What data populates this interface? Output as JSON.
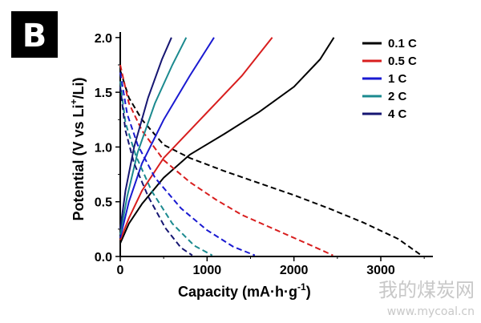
{
  "panel_label": "B",
  "watermark": {
    "title": "我的煤炭网",
    "url": "www.mycoal.cn"
  },
  "chart_data": {
    "type": "line",
    "xlabel": "Capacity (mA·h·g",
    "xlabel_sup": "-1",
    "xlabel_tail": ")",
    "ylabel_parts": [
      "Potential (V vs Li",
      "+",
      "/Li)"
    ],
    "xlim": [
      0,
      3600
    ],
    "ylim": [
      0,
      2.05
    ],
    "xticks": [
      0,
      1000,
      2000,
      3000
    ],
    "xtick_labels": [
      "0",
      "1000",
      "2000",
      "3000"
    ],
    "yticks": [
      0.0,
      0.5,
      1.0,
      1.5,
      2.0
    ],
    "ytick_labels": [
      "0.0",
      "0.5",
      "1.0",
      "1.5",
      "2.0"
    ],
    "legend_position": "top-right",
    "series": [
      {
        "name": "0.1 C",
        "color": "#000000",
        "discharge": [
          [
            0,
            1.7
          ],
          [
            100,
            1.45
          ],
          [
            250,
            1.25
          ],
          [
            500,
            1.02
          ],
          [
            800,
            0.9
          ],
          [
            1200,
            0.78
          ],
          [
            1600,
            0.67
          ],
          [
            2000,
            0.56
          ],
          [
            2400,
            0.44
          ],
          [
            2800,
            0.31
          ],
          [
            3200,
            0.16
          ],
          [
            3450,
            0.02
          ]
        ],
        "charge": [
          [
            0,
            0.12
          ],
          [
            100,
            0.3
          ],
          [
            250,
            0.48
          ],
          [
            500,
            0.72
          ],
          [
            800,
            0.93
          ],
          [
            1200,
            1.12
          ],
          [
            1600,
            1.32
          ],
          [
            2000,
            1.55
          ],
          [
            2300,
            1.8
          ],
          [
            2460,
            2.0
          ]
        ]
      },
      {
        "name": "0.5 C",
        "color": "#d81e1e",
        "discharge": [
          [
            0,
            1.75
          ],
          [
            100,
            1.4
          ],
          [
            250,
            1.15
          ],
          [
            500,
            0.88
          ],
          [
            800,
            0.68
          ],
          [
            1100,
            0.52
          ],
          [
            1400,
            0.38
          ],
          [
            1800,
            0.24
          ],
          [
            2200,
            0.1
          ],
          [
            2450,
            0.01
          ]
        ],
        "charge": [
          [
            0,
            0.15
          ],
          [
            100,
            0.35
          ],
          [
            250,
            0.6
          ],
          [
            500,
            0.9
          ],
          [
            800,
            1.15
          ],
          [
            1100,
            1.4
          ],
          [
            1400,
            1.65
          ],
          [
            1750,
            2.0
          ]
        ]
      },
      {
        "name": "1 C",
        "color": "#1a1ad1",
        "discharge": [
          [
            0,
            1.68
          ],
          [
            80,
            1.3
          ],
          [
            200,
            1.02
          ],
          [
            400,
            0.72
          ],
          [
            700,
            0.44
          ],
          [
            1000,
            0.24
          ],
          [
            1300,
            0.09
          ],
          [
            1550,
            0.01
          ]
        ],
        "charge": [
          [
            0,
            0.17
          ],
          [
            100,
            0.5
          ],
          [
            250,
            0.85
          ],
          [
            500,
            1.25
          ],
          [
            800,
            1.65
          ],
          [
            1080,
            2.0
          ]
        ]
      },
      {
        "name": "2 C",
        "color": "#1b8a8f",
        "discharge": [
          [
            0,
            1.6
          ],
          [
            60,
            1.22
          ],
          [
            180,
            0.92
          ],
          [
            360,
            0.6
          ],
          [
            600,
            0.3
          ],
          [
            850,
            0.1
          ],
          [
            1060,
            0.01
          ]
        ],
        "charge": [
          [
            0,
            0.2
          ],
          [
            80,
            0.55
          ],
          [
            200,
            0.95
          ],
          [
            400,
            1.4
          ],
          [
            600,
            1.75
          ],
          [
            760,
            2.0
          ]
        ]
      },
      {
        "name": "4 C",
        "color": "#161672",
        "discharge": [
          [
            0,
            1.55
          ],
          [
            60,
            1.15
          ],
          [
            160,
            0.85
          ],
          [
            320,
            0.55
          ],
          [
            520,
            0.26
          ],
          [
            700,
            0.08
          ],
          [
            830,
            0.01
          ]
        ],
        "charge": [
          [
            0,
            0.25
          ],
          [
            60,
            0.6
          ],
          [
            160,
            1.0
          ],
          [
            320,
            1.45
          ],
          [
            480,
            1.8
          ],
          [
            590,
            2.0
          ]
        ]
      }
    ]
  }
}
